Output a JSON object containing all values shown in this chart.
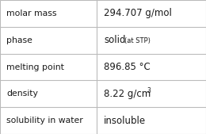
{
  "rows": [
    {
      "label": "molar mass",
      "value": "294.707 g/mol"
    },
    {
      "label": "phase",
      "value": "solid  (at STP)"
    },
    {
      "label": "melting point",
      "value": "896.85 °C"
    },
    {
      "label": "density",
      "value": "8.22 g/cm³"
    },
    {
      "label": "solubility in water",
      "value": "insoluble"
    }
  ],
  "col_split": 0.47,
  "bg_color": "#ffffff",
  "border_color": "#bbbbbb",
  "text_color": "#1a1a1a",
  "label_fontsize": 7.8,
  "value_fontsize": 8.5,
  "small_fontsize": 6.0,
  "super_fontsize": 5.5
}
